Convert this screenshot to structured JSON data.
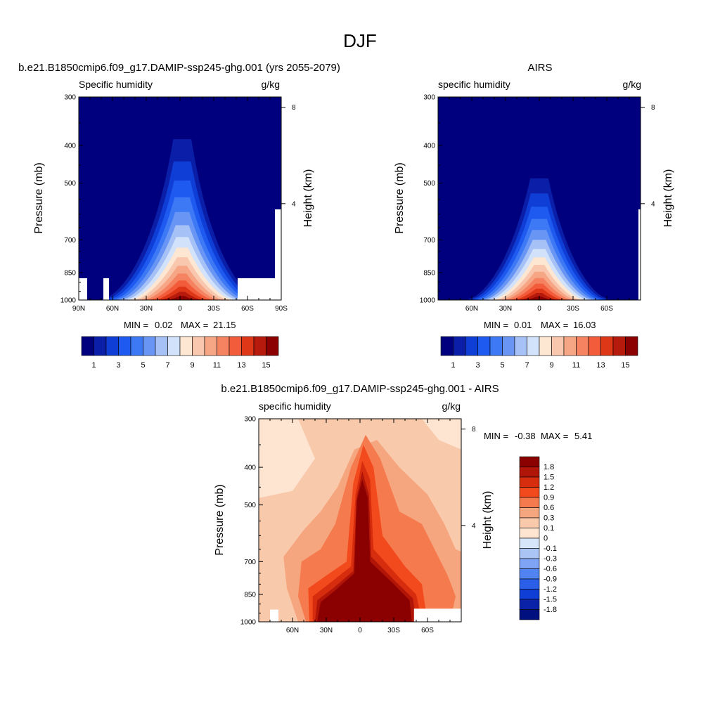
{
  "figure": {
    "title": "DJF"
  },
  "chart_data": [
    {
      "type": "heatmap",
      "title": "b.e21.B1850cmip6.f09_g17.DAMIP-ssp245-ghg.001 (yrs 2055-2079)",
      "left_label": "Specific humidity",
      "right_label": "g/kg",
      "ylabel": "Pressure (mb)",
      "ylabel_right": "Height (km)",
      "x_range": [
        90,
        -90
      ],
      "x_ticks": [
        {
          "value": 90,
          "label": "90N"
        },
        {
          "value": 60,
          "label": "60N"
        },
        {
          "value": 30,
          "label": "30N"
        },
        {
          "value": 0,
          "label": "0"
        },
        {
          "value": -30,
          "label": "30S"
        },
        {
          "value": -60,
          "label": "60S"
        },
        {
          "value": -90,
          "label": "90S"
        }
      ],
      "y_range": [
        1000,
        300
      ],
      "y_ticks": [
        {
          "value": 300,
          "label": "300"
        },
        {
          "value": 400,
          "label": "400"
        },
        {
          "value": 500,
          "label": "500"
        },
        {
          "value": 700,
          "label": "700"
        },
        {
          "value": 850,
          "label": "850"
        },
        {
          "value": 1000,
          "label": "1000"
        }
      ],
      "height_ticks": [
        {
          "value": 8,
          "label": "8"
        },
        {
          "value": 4,
          "label": "4"
        }
      ],
      "stats": {
        "min_label": "MIN =",
        "min": "0.02",
        "max_label": "MAX =",
        "max": "21.15"
      },
      "peak": {
        "lat": -2,
        "p_top": 330,
        "half_width_top": 7,
        "half_width_bottom": 70
      },
      "colorbar_ticks": [
        "1",
        "3",
        "5",
        "7",
        "9",
        "11",
        "13",
        "15"
      ]
    },
    {
      "type": "heatmap",
      "title": "AIRS",
      "left_label": "specific humidity",
      "right_label": "g/kg",
      "ylabel": "Pressure (mb)",
      "ylabel_right": "Height (km)",
      "x_range": [
        90,
        -90
      ],
      "x_ticks": [
        {
          "value": 60,
          "label": "60N"
        },
        {
          "value": 30,
          "label": "30N"
        },
        {
          "value": 0,
          "label": "0"
        },
        {
          "value": -30,
          "label": "30S"
        },
        {
          "value": -60,
          "label": "60S"
        }
      ],
      "y_range": [
        1000,
        300
      ],
      "y_ticks": [
        {
          "value": 300,
          "label": "300"
        },
        {
          "value": 400,
          "label": "400"
        },
        {
          "value": 500,
          "label": "500"
        },
        {
          "value": 700,
          "label": "700"
        },
        {
          "value": 850,
          "label": "850"
        },
        {
          "value": 1000,
          "label": "1000"
        }
      ],
      "height_ticks": [
        {
          "value": 8,
          "label": "8"
        },
        {
          "value": 4,
          "label": "4"
        }
      ],
      "stats": {
        "min_label": "MIN =",
        "min": "0.01",
        "max_label": "MAX =",
        "max": "16.03"
      },
      "peak": {
        "lat": 0,
        "p_top": 440,
        "half_width_top": 7,
        "half_width_bottom": 62
      },
      "colorbar_ticks": [
        "1",
        "3",
        "5",
        "7",
        "9",
        "11",
        "13",
        "15"
      ]
    },
    {
      "type": "heatmap",
      "title": "b.e21.B1850cmip6.f09_g17.DAMIP-ssp245-ghg.001 - AIRS",
      "left_label": "specific humidity",
      "right_label": "g/kg",
      "ylabel": "Pressure (mb)",
      "ylabel_right": "Height (km)",
      "x_range": [
        90,
        -90
      ],
      "x_ticks": [
        {
          "value": 60,
          "label": "60N"
        },
        {
          "value": 30,
          "label": "30N"
        },
        {
          "value": 0,
          "label": "0"
        },
        {
          "value": -30,
          "label": "30S"
        },
        {
          "value": -60,
          "label": "60S"
        }
      ],
      "y_range": [
        1000,
        300
      ],
      "y_ticks": [
        {
          "value": 300,
          "label": "300"
        },
        {
          "value": 400,
          "label": "400"
        },
        {
          "value": 500,
          "label": "500"
        },
        {
          "value": 700,
          "label": "700"
        },
        {
          "value": 850,
          "label": "850"
        },
        {
          "value": 1000,
          "label": "1000"
        }
      ],
      "height_ticks": [
        {
          "value": 8,
          "label": "8"
        },
        {
          "value": 4,
          "label": "4"
        }
      ],
      "stats": {
        "min_label": "MIN =",
        "min": "-0.38",
        "max_label": "MAX =",
        "max": "5.41"
      },
      "colorbar_ticks": [
        "1.8",
        "1.5",
        "1.2",
        "0.9",
        "0.6",
        "0.3",
        "0.1",
        "0",
        "-0.1",
        "-0.3",
        "-0.6",
        "-0.9",
        "-1.2",
        "-1.5",
        "-1.8"
      ]
    }
  ],
  "palettes": {
    "sequential": [
      "#00007f",
      "#0a1ea8",
      "#0f3ed6",
      "#1e5af0",
      "#3d79f5",
      "#6996f5",
      "#a6c1f5",
      "#d2e2fa",
      "#fde6d2",
      "#f9c7ad",
      "#f6a585",
      "#f58260",
      "#f25c3a",
      "#de3718",
      "#b51a0c",
      "#8b0000"
    ],
    "difference": [
      "#8b0000",
      "#b01507",
      "#d62d0e",
      "#f24a1d",
      "#f57a4e",
      "#f6a67f",
      "#f9c9ac",
      "#fde5d2",
      "#d6e5fa",
      "#aac5f5",
      "#80a4f5",
      "#5283f2",
      "#2b5fe8",
      "#0f3ed6",
      "#0a22a8",
      "#00107f"
    ]
  }
}
